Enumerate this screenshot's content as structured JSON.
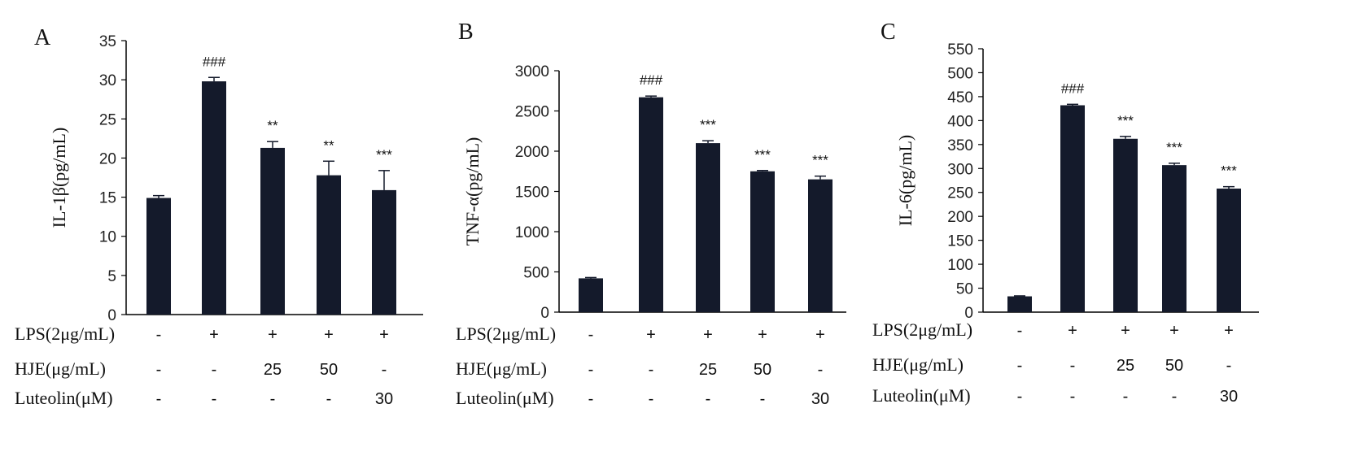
{
  "chart_data": [
    {
      "type": "bar",
      "panel": "A",
      "ylabel": "IL-1β(pg/mL)",
      "ylim": [
        0,
        35
      ],
      "yticks": [
        0,
        5,
        10,
        15,
        20,
        25,
        30,
        35
      ],
      "values": [
        14.9,
        29.8,
        21.3,
        17.8,
        15.9
      ],
      "errors": [
        0.3,
        0.5,
        0.8,
        1.8,
        2.5
      ],
      "significance": [
        "",
        "###",
        "**",
        "**",
        "***"
      ],
      "rows": [
        {
          "label": "LPS(2μg/mL)",
          "values": [
            "-",
            "+",
            "+",
            "+",
            "+"
          ]
        },
        {
          "label": "HJE(μg/mL)",
          "values": [
            "-",
            "-",
            "25",
            "50",
            "-"
          ]
        },
        {
          "label": "Luteolin(μM)",
          "values": [
            "-",
            "-",
            "-",
            "-",
            "30"
          ]
        }
      ]
    },
    {
      "type": "bar",
      "panel": "B",
      "ylabel": "TNF-α(pg/mL)",
      "ylim": [
        0,
        3000
      ],
      "yticks": [
        0,
        500,
        1000,
        1500,
        2000,
        2500,
        3000
      ],
      "values": [
        420,
        2670,
        2100,
        1750,
        1650
      ],
      "errors": [
        10,
        15,
        30,
        10,
        40
      ],
      "significance": [
        "",
        "###",
        "***",
        "***",
        "***"
      ],
      "rows": [
        {
          "label": "LPS(2μg/mL)",
          "values": [
            "-",
            "+",
            "+",
            "+",
            "+"
          ]
        },
        {
          "label": "HJE(μg/mL)",
          "values": [
            "-",
            "-",
            "25",
            "50",
            "-"
          ]
        },
        {
          "label": "Luteolin(μM)",
          "values": [
            "-",
            "-",
            "-",
            "-",
            "30"
          ]
        }
      ]
    },
    {
      "type": "bar",
      "panel": "C",
      "ylabel": "IL-6(pg/mL)",
      "ylim": [
        0,
        550
      ],
      "yticks": [
        0,
        50,
        100,
        150,
        200,
        250,
        300,
        350,
        400,
        450,
        500,
        550
      ],
      "values": [
        33,
        432,
        362,
        307,
        258
      ],
      "errors": [
        1,
        2,
        5,
        4,
        4
      ],
      "significance": [
        "",
        "###",
        "***",
        "***",
        "***"
      ],
      "rows": [
        {
          "label": "LPS(2μg/mL)",
          "values": [
            "-",
            "+",
            "+",
            "+",
            "+"
          ]
        },
        {
          "label": "HJE(μg/mL)",
          "values": [
            "-",
            "-",
            "25",
            "50",
            "-"
          ]
        },
        {
          "label": "Luteolin(μM)",
          "values": [
            "-",
            "-",
            "-",
            "-",
            "30"
          ]
        }
      ]
    }
  ],
  "colors": {
    "bar": "#141a2b",
    "axis": "#000000"
  }
}
